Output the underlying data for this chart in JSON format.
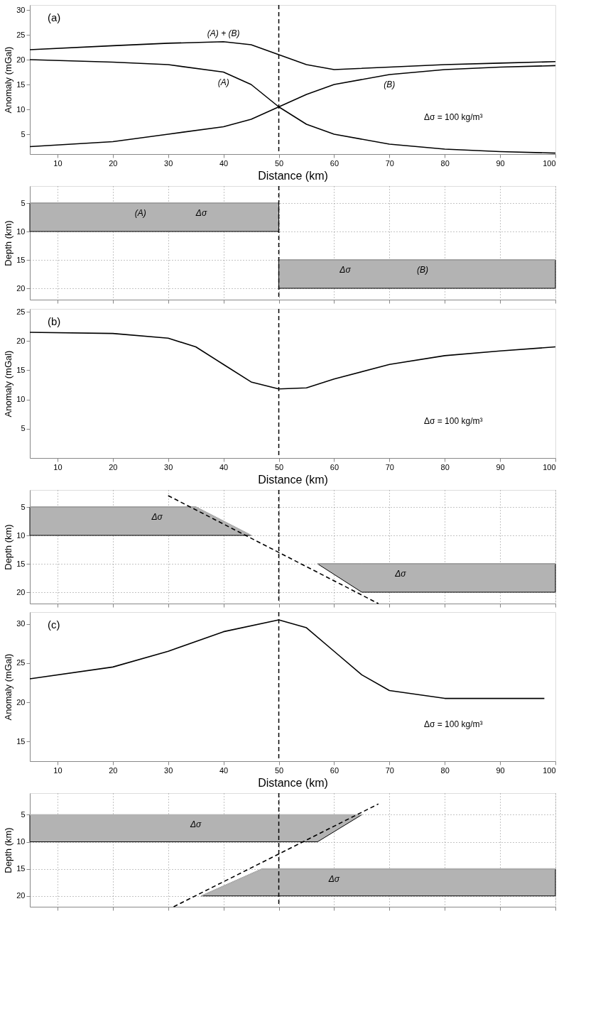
{
  "chart_data": [
    {
      "type": "line",
      "ylabel": "Anomaly (mGal)",
      "xlabel": "Distance (km)",
      "xlim": [
        5,
        100
      ],
      "xticks": [
        10,
        20,
        30,
        40,
        50,
        60,
        70,
        80,
        90,
        100
      ],
      "ylim": [
        1,
        31
      ],
      "yticks": [
        5,
        10,
        15,
        20,
        25,
        30
      ],
      "marker": "none",
      "line_style": "solid",
      "series": [
        {
          "color": "#000000",
          "x": [
            5,
            20,
            30,
            40,
            45,
            50,
            55,
            60,
            70,
            80,
            90,
            100
          ],
          "values": [
            22,
            22.8,
            23.3,
            23.6,
            23,
            21,
            19,
            18,
            18.5,
            19,
            19.3,
            19.6
          ]
        },
        {
          "color": "#000000",
          "x": [
            5,
            20,
            30,
            40,
            45,
            50,
            55,
            60,
            70,
            80,
            90,
            100
          ],
          "values": [
            20,
            19.5,
            19,
            17.5,
            15,
            10.5,
            7,
            5,
            3,
            2,
            1.5,
            1.2
          ]
        },
        {
          "color": "#000000",
          "x": [
            5,
            20,
            30,
            40,
            45,
            50,
            55,
            60,
            70,
            80,
            90,
            100
          ],
          "values": [
            2.5,
            3.5,
            5,
            6.5,
            8,
            10.5,
            13,
            15,
            17,
            18,
            18.5,
            18.8
          ]
        }
      ],
      "ref_lines": [
        {
          "axis": "x",
          "value": 50,
          "color": "#000000",
          "line_style": "dashed"
        }
      ],
      "annotations": [
        "(a)",
        "Δσ = 100 kg/m³",
        {
          "text": "(A) + (B)",
          "x": 40,
          "y": 23.6
        },
        {
          "text": "(A)",
          "x": 40,
          "y": 17.5
        },
        {
          "text": "(B)",
          "x": 70,
          "y": 17
        }
      ]
    },
    {
      "type": "line",
      "ylabel": "Depth (km)",
      "xlim": [
        5,
        100
      ],
      "xticks": [
        10,
        20,
        30,
        40,
        50,
        60,
        70,
        80,
        90,
        100
      ],
      "ylim": [
        22,
        2
      ],
      "yticks": [
        5,
        10,
        15,
        20
      ],
      "tick_labels": "y",
      "grid": true,
      "marker": "none",
      "line_style": "solid",
      "series": [
        {
          "color": "#b3b3b3",
          "x": [
            5,
            50
          ],
          "values": [
            5,
            5
          ],
          "lower": [
            5,
            5
          ],
          "upper": [
            10,
            10
          ]
        },
        {
          "color": "#b3b3b3",
          "x": [
            50,
            100
          ],
          "values": [
            15,
            15
          ],
          "lower": [
            15,
            15
          ],
          "upper": [
            20,
            20
          ]
        }
      ],
      "ref_lines": [
        {
          "axis": "x",
          "value": 50,
          "color": "#000000",
          "line_style": "dashed"
        }
      ],
      "annotations": [
        {
          "text": "(A)",
          "x": 25,
          "y": 5
        },
        {
          "text": "Δσ",
          "x": 36,
          "y": 5
        },
        {
          "text": "Δσ",
          "x": 62,
          "y": 15
        },
        {
          "text": "(B)",
          "x": 76,
          "y": 15
        }
      ]
    },
    {
      "type": "line",
      "ylabel": "Anomaly (mGal)",
      "xlabel": "Distance (km)",
      "xlim": [
        5,
        100
      ],
      "xticks": [
        10,
        20,
        30,
        40,
        50,
        60,
        70,
        80,
        90,
        100
      ],
      "ylim": [
        0,
        25.5
      ],
      "yticks": [
        5,
        10,
        15,
        20,
        25
      ],
      "marker": "none",
      "line_style": "solid",
      "series": [
        {
          "color": "#000000",
          "x": [
            5,
            20,
            30,
            35,
            40,
            45,
            50,
            55,
            60,
            70,
            80,
            90,
            100
          ],
          "values": [
            21.5,
            21.3,
            20.5,
            19,
            16,
            13,
            11.8,
            12,
            13.5,
            16,
            17.5,
            18.3,
            19
          ]
        }
      ],
      "ref_lines": [
        {
          "axis": "x",
          "value": 50,
          "color": "#000000",
          "line_style": "dashed"
        }
      ],
      "annotations": [
        "(b)",
        "Δσ = 100 kg/m³"
      ]
    },
    {
      "type": "line",
      "ylabel": "Depth (km)",
      "xlim": [
        5,
        100
      ],
      "xticks": [
        10,
        20,
        30,
        40,
        50,
        60,
        70,
        80,
        90,
        100
      ],
      "ylim": [
        22,
        2
      ],
      "yticks": [
        5,
        10,
        15,
        20
      ],
      "tick_labels": "y",
      "grid": true,
      "marker": "none",
      "line_style": "solid",
      "series": [
        {
          "color": "#b3b3b3",
          "x": [
            5,
            35,
            45
          ],
          "values": [
            5,
            5,
            10
          ],
          "lower": [
            5,
            5,
            10
          ],
          "upper": [
            10,
            10,
            10
          ]
        },
        {
          "color": "#b3b3b3",
          "x": [
            57,
            65,
            100
          ],
          "values": [
            15,
            15,
            15
          ],
          "lower": [
            15,
            15,
            15
          ],
          "upper": [
            15,
            20,
            20
          ]
        },
        {
          "color": "#000000",
          "line_style": "dashed",
          "x": [
            30,
            68
          ],
          "values": [
            3,
            22
          ]
        }
      ],
      "ref_lines": [
        {
          "axis": "x",
          "value": 50,
          "color": "#000000",
          "line_style": "dashed"
        }
      ],
      "annotations": [
        {
          "text": "Δσ",
          "x": 28,
          "y": 5
        },
        {
          "text": "Δσ",
          "x": 72,
          "y": 15
        }
      ]
    },
    {
      "type": "line",
      "ylabel": "Anomaly (mGal)",
      "xlabel": "Distance (km)",
      "xlim": [
        5,
        100
      ],
      "xticks": [
        10,
        20,
        30,
        40,
        50,
        60,
        70,
        80,
        90,
        100
      ],
      "ylim": [
        12.5,
        31.5
      ],
      "yticks": [
        15,
        20,
        25,
        30
      ],
      "marker": "none",
      "line_style": "solid",
      "series": [
        {
          "color": "#000000",
          "x": [
            5,
            20,
            30,
            40,
            50,
            55,
            60,
            65,
            70,
            80,
            90,
            98
          ],
          "values": [
            23,
            24.5,
            26.5,
            29,
            30.5,
            29.5,
            26.5,
            23.5,
            21.5,
            20.5,
            20.5,
            20.5
          ]
        }
      ],
      "ref_lines": [
        {
          "axis": "x",
          "value": 50,
          "color": "#000000",
          "line_style": "dashed"
        }
      ],
      "annotations": [
        "(c)",
        "Δσ = 100 kg/m³"
      ]
    },
    {
      "type": "line",
      "ylabel": "Depth (km)",
      "xlim": [
        5,
        100
      ],
      "xticks": [
        10,
        20,
        30,
        40,
        50,
        60,
        70,
        80,
        90,
        100
      ],
      "ylim": [
        22,
        1
      ],
      "yticks": [
        5,
        10,
        15,
        20
      ],
      "tick_labels": "y",
      "grid": true,
      "marker": "none",
      "line_style": "solid",
      "series": [
        {
          "color": "#b3b3b3",
          "x": [
            5,
            57,
            65
          ],
          "values": [
            5,
            5,
            5
          ],
          "lower": [
            5,
            5,
            5
          ],
          "upper": [
            10,
            10,
            5
          ]
        },
        {
          "color": "#b3b3b3",
          "x": [
            36,
            47,
            100
          ],
          "values": [
            20,
            15,
            15
          ],
          "lower": [
            20,
            15,
            15
          ],
          "upper": [
            20,
            20,
            20
          ]
        },
        {
          "color": "#000000",
          "line_style": "dashed",
          "x": [
            31,
            68
          ],
          "values": [
            22,
            3
          ]
        }
      ],
      "ref_lines": [
        {
          "axis": "x",
          "value": 50,
          "color": "#000000",
          "line_style": "dashed"
        }
      ],
      "annotations": [
        {
          "text": "Δσ",
          "x": 35,
          "y": 5
        },
        {
          "text": "Δσ",
          "x": 60,
          "y": 15
        }
      ]
    }
  ]
}
